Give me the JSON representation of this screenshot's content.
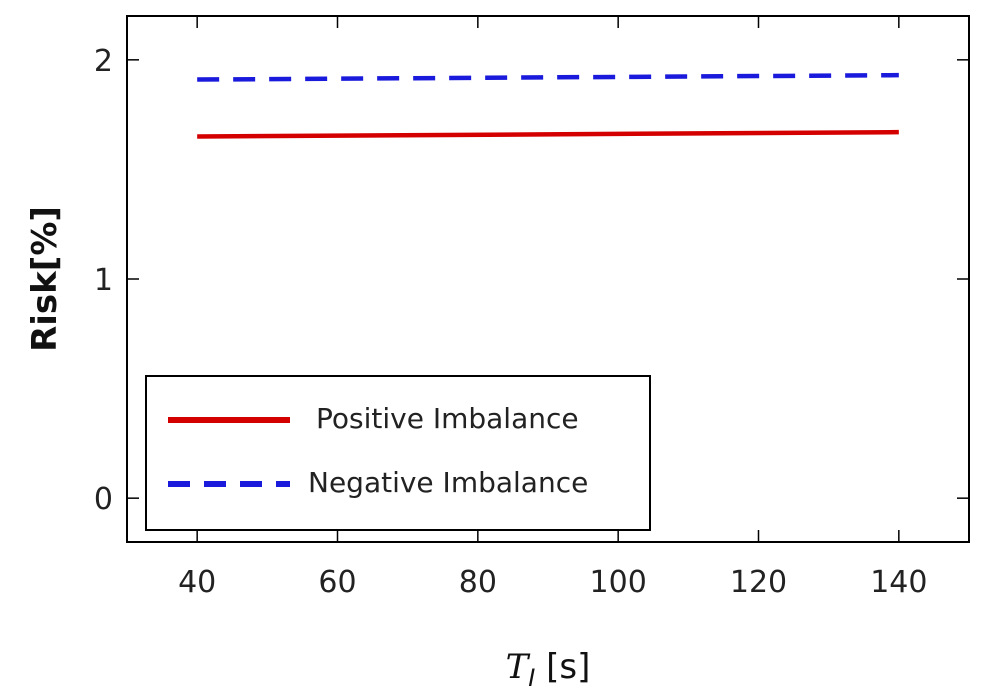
{
  "chart_data": {
    "type": "line",
    "xlabel": {
      "main": "T",
      "sub": "I",
      "unit": " [s]"
    },
    "ylabel": "Risk[%]",
    "xlim": [
      30,
      150
    ],
    "ylim": [
      -0.2,
      2.2
    ],
    "xticks": [
      40,
      60,
      80,
      100,
      120,
      140
    ],
    "yticks": [
      0,
      1,
      2
    ],
    "legend_position": "bottom-left",
    "grid": false,
    "series": [
      {
        "name": "Positive Imbalance",
        "color": "#d40000",
        "style": "solid",
        "x": [
          40,
          140
        ],
        "y": [
          1.65,
          1.67
        ]
      },
      {
        "name": "Negative Imbalance",
        "color": "#1a1adc",
        "style": "dashed",
        "x": [
          40,
          140
        ],
        "y": [
          1.91,
          1.93
        ]
      }
    ]
  }
}
